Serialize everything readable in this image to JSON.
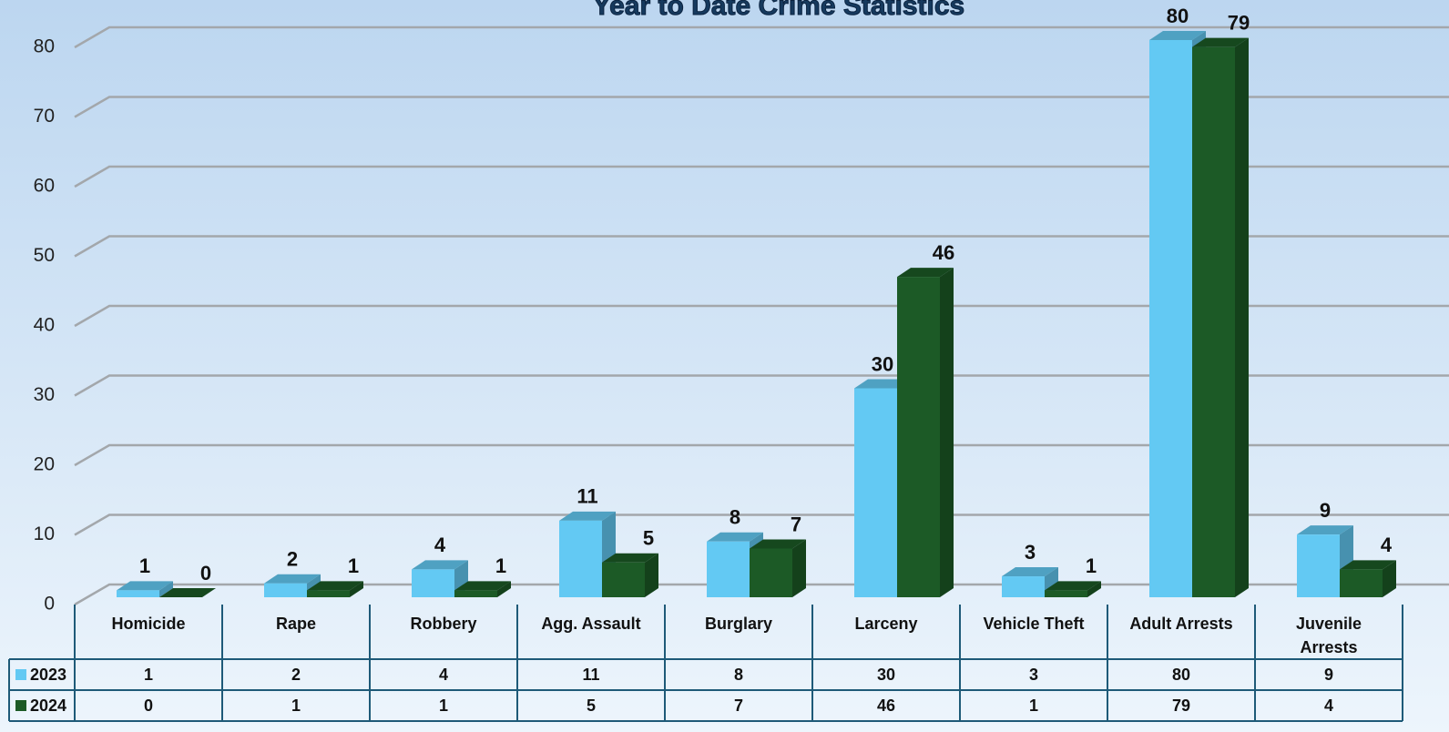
{
  "chart_data": {
    "type": "bar",
    "title": "Year to Date Crime Statistics",
    "categories": [
      "Homicide",
      "Rape",
      "Robbery",
      "Agg. Assault",
      "Burglary",
      "Larceny",
      "Vehicle Theft",
      "Adult Arrests",
      "Juvenile Arrests"
    ],
    "series": [
      {
        "name": "2023",
        "color": "#63c9f3",
        "values": [
          1,
          2,
          4,
          11,
          8,
          30,
          3,
          80,
          9
        ]
      },
      {
        "name": "2024",
        "color": "#1c5a26",
        "values": [
          0,
          1,
          1,
          5,
          7,
          46,
          1,
          79,
          4
        ]
      }
    ],
    "ylim": [
      0,
      80
    ],
    "yticks": [
      0,
      10,
      20,
      30,
      40,
      50,
      60,
      70,
      80
    ],
    "grid": true,
    "data_table": true
  }
}
